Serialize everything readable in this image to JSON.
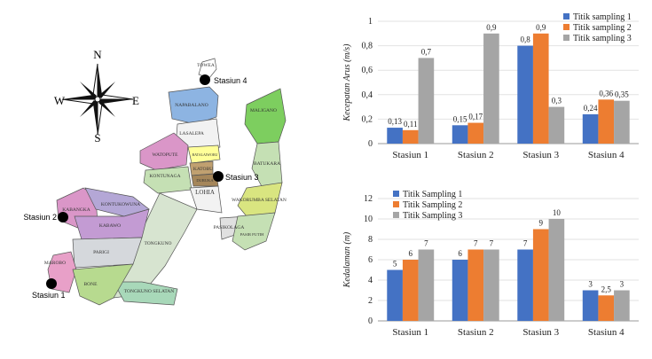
{
  "map": {
    "compass": {
      "n": "N",
      "e": "E",
      "s": "S",
      "w": "W"
    },
    "stations": [
      "Stasiun 1",
      "Stasiun 2",
      "Stasiun 3",
      "Stasiun 4"
    ],
    "regions": [
      "TOWEA",
      "NAPABALANO",
      "LASALEPA",
      "WATOPUTE",
      "BATALAIWORU",
      "KATOBU",
      "DURUKA",
      "KONTUNAGA",
      "LOHIA",
      "MALIGANO",
      "BATUKARA",
      "WAKORUMBA SELATAN",
      "PASIKOLAGA",
      "PASIR PUTIH",
      "TONGKUNO",
      "TONGKUNO SELATAN",
      "KABANGKA",
      "KONTUKOWUNA",
      "KABAWO",
      "PARIGI",
      "MAROBO",
      "BONE"
    ],
    "colors": {
      "sea": "#ffffff",
      "outline": "#555555"
    }
  },
  "chart_data": [
    {
      "type": "bar",
      "title": "",
      "ylabel": "Kecepatan Arus (m/s)",
      "xlabel": "",
      "categories": [
        "Stasiun 1",
        "Stasiun 2",
        "Stasiun 3",
        "Stasiun 4"
      ],
      "ylim": [
        0,
        1
      ],
      "yticks": [
        0,
        0.2,
        0.4,
        0.6,
        0.8,
        1
      ],
      "ytick_labels": [
        "0",
        "0,2",
        "0,4",
        "0,6",
        "0,8",
        "1"
      ],
      "series": [
        {
          "name": "Titik sampling 1",
          "color": "#4472C4",
          "values": [
            0.13,
            0.15,
            0.8,
            0.24
          ],
          "labels": [
            "0,13",
            "0,15",
            "0,8",
            "0,24"
          ]
        },
        {
          "name": "Titik sampling 2",
          "color": "#ED7D31",
          "values": [
            0.11,
            0.17,
            0.9,
            0.36
          ],
          "labels": [
            "0,11",
            "0,17",
            "0,9",
            "0,36"
          ]
        },
        {
          "name": "Titik sampling 3",
          "color": "#A5A5A5",
          "values": [
            0.7,
            0.9,
            0.3,
            0.35
          ],
          "labels": [
            "0,7",
            "0,9",
            "0,3",
            "0,35"
          ]
        }
      ],
      "legend": "top-right"
    },
    {
      "type": "bar",
      "title": "",
      "ylabel": "Kedalaman (m)",
      "xlabel": "",
      "categories": [
        "Stasiun 1",
        "Stasiun 2",
        "Stasiun 3",
        "Stasiun 4"
      ],
      "ylim": [
        0,
        12
      ],
      "yticks": [
        0,
        2,
        4,
        6,
        8,
        10,
        12
      ],
      "ytick_labels": [
        "0",
        "2",
        "4",
        "6",
        "8",
        "10",
        "12"
      ],
      "series": [
        {
          "name": "Titik Sampling 1",
          "color": "#4472C4",
          "values": [
            5,
            6,
            7,
            3
          ],
          "labels": [
            "5",
            "6",
            "7",
            "3"
          ]
        },
        {
          "name": "Titik Sampling 2",
          "color": "#ED7D31",
          "values": [
            6,
            7,
            9,
            2.5
          ],
          "labels": [
            "6",
            "7",
            "9",
            "2,5"
          ]
        },
        {
          "name": "Titik Sampling 3",
          "color": "#A5A5A5",
          "values": [
            7,
            7,
            10,
            3
          ],
          "labels": [
            "7",
            "7",
            "10",
            "3"
          ]
        }
      ],
      "legend": "top-left"
    }
  ]
}
